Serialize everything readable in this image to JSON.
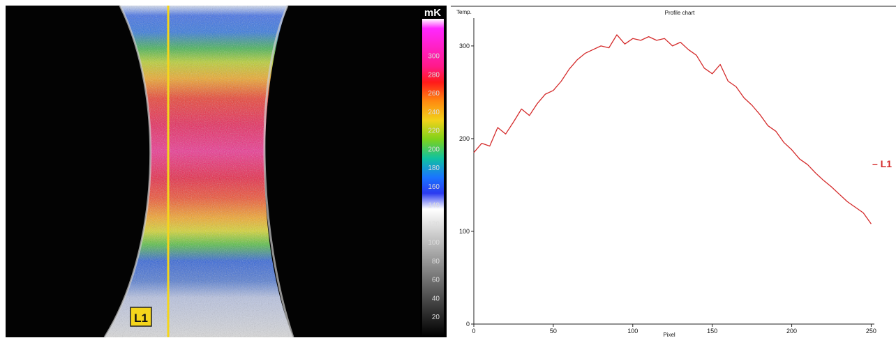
{
  "thermal_view": {
    "line_label": "L1",
    "colors": {
      "line": "#f4d51c",
      "label_bg": "#f4d51c",
      "label_border": "#222222",
      "label_text": "#111111"
    },
    "scale": {
      "unit": "mK",
      "ticks": [
        300,
        280,
        260,
        240,
        220,
        200,
        180,
        160,
        140,
        120,
        100,
        80,
        60,
        40,
        20
      ],
      "range": [
        0,
        340
      ]
    }
  },
  "chart_data": {
    "type": "line",
    "title": "Profile chart",
    "xlabel": "Pixel",
    "ylabel": "Temp.",
    "xlim": [
      0,
      252
    ],
    "ylim": [
      0,
      330
    ],
    "xticks": [
      0,
      50,
      100,
      150,
      200,
      250
    ],
    "yticks": [
      0,
      100,
      200,
      300
    ],
    "legend_position": "right",
    "series": [
      {
        "name": "L1",
        "color": "#d42a2a",
        "x": [
          0,
          5,
          10,
          15,
          20,
          25,
          30,
          35,
          40,
          45,
          50,
          55,
          60,
          65,
          70,
          75,
          80,
          85,
          90,
          95,
          100,
          105,
          110,
          115,
          120,
          125,
          130,
          135,
          140,
          145,
          150,
          155,
          160,
          165,
          170,
          175,
          180,
          185,
          190,
          195,
          200,
          205,
          210,
          215,
          220,
          225,
          230,
          235,
          240,
          245,
          250
        ],
        "y": [
          185,
          195,
          192,
          212,
          205,
          218,
          232,
          225,
          238,
          248,
          252,
          262,
          275,
          285,
          292,
          296,
          300,
          298,
          312,
          302,
          308,
          306,
          310,
          306,
          308,
          300,
          304,
          296,
          290,
          276,
          270,
          280,
          262,
          256,
          244,
          236,
          226,
          214,
          208,
          196,
          188,
          178,
          172,
          163,
          155,
          148,
          140,
          132,
          126,
          120,
          108
        ]
      }
    ]
  }
}
